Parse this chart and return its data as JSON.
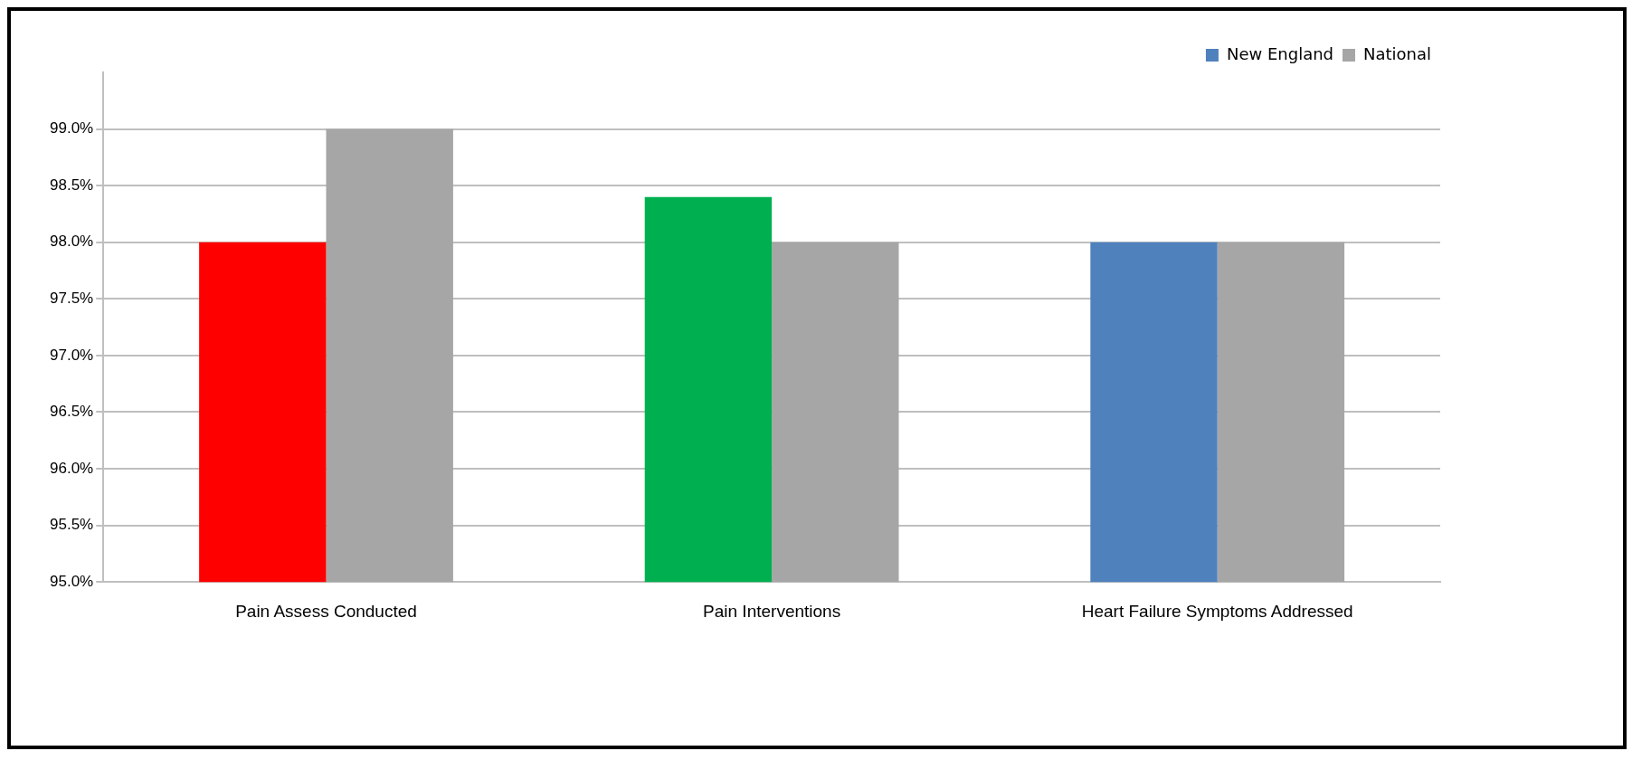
{
  "chart_data": {
    "type": "bar",
    "categories": [
      "Pain Assess Conducted",
      "Pain Interventions",
      "Heart Failure Symptoms Addressed"
    ],
    "series": [
      {
        "name": "New England",
        "color": "#4f81bd",
        "colors": [
          "#ff0000",
          "#00b050",
          "#4f81bd"
        ],
        "values": [
          98.0,
          98.4,
          98.0
        ]
      },
      {
        "name": "National",
        "color": "#a6a6a6",
        "values": [
          99.0,
          98.0,
          98.0
        ]
      }
    ],
    "ylim": [
      95,
      99.5
    ],
    "yticks": [
      {
        "value": 95,
        "label": "95.0%"
      },
      {
        "value": 95.5,
        "label": "95.5%"
      },
      {
        "value": 96,
        "label": "96.0%"
      },
      {
        "value": 96.5,
        "label": "96.5%"
      },
      {
        "value": 97,
        "label": "97.0%"
      },
      {
        "value": 97.5,
        "label": "97.5%"
      },
      {
        "value": 98,
        "label": "98.0%"
      },
      {
        "value": 98.5,
        "label": "98.5%"
      },
      {
        "value": 99,
        "label": "99.0%"
      }
    ],
    "grid": "y",
    "legend": "top right"
  }
}
